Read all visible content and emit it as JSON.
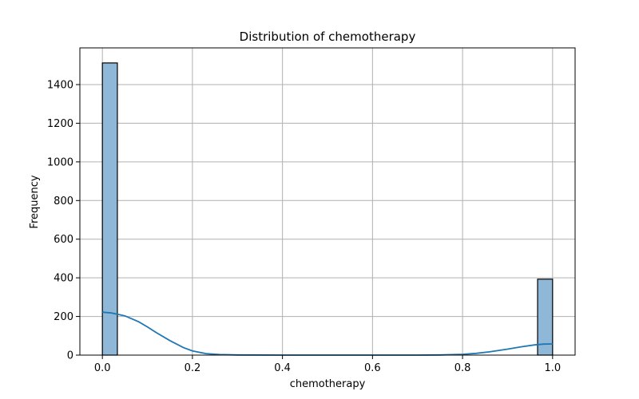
{
  "chart_data": {
    "type": "bar",
    "title": "Distribution of chemotherapy",
    "xlabel": "chemotherapy",
    "ylabel": "Frequency",
    "xlim": [
      -0.05,
      1.05
    ],
    "ylim": [
      0,
      1590
    ],
    "xticks": [
      0.0,
      0.2,
      0.4,
      0.6,
      0.8,
      1.0
    ],
    "xtick_labels": [
      "0.0",
      "0.2",
      "0.4",
      "0.6",
      "0.8",
      "1.0"
    ],
    "yticks": [
      0,
      200,
      400,
      600,
      800,
      1000,
      1200,
      1400
    ],
    "ytick_labels": [
      "0",
      "200",
      "400",
      "600",
      "800",
      "1000",
      "1200",
      "1400"
    ],
    "grid": true,
    "bins": [
      {
        "x0": 0.0,
        "x1": 0.0333,
        "count": 1512
      },
      {
        "x0": 0.9667,
        "x1": 1.0,
        "count": 393
      }
    ],
    "kde": {
      "x": [
        0.0,
        0.02,
        0.05,
        0.08,
        0.1,
        0.12,
        0.15,
        0.18,
        0.2,
        0.23,
        0.26,
        0.3,
        0.4,
        0.5,
        0.6,
        0.7,
        0.75,
        0.8,
        0.83,
        0.86,
        0.9,
        0.93,
        0.96,
        0.98,
        1.0
      ],
      "y": [
        222,
        218,
        203,
        173,
        146,
        116,
        75,
        39,
        22,
        8,
        3,
        1,
        0,
        0,
        0,
        0,
        1,
        4,
        9,
        17,
        31,
        43,
        53,
        57,
        58
      ]
    },
    "colors": {
      "bar_fill": "#8fb8d8",
      "bar_edge": "#000000",
      "kde_line": "#1f77b4",
      "grid": "#b0b0b0"
    }
  }
}
